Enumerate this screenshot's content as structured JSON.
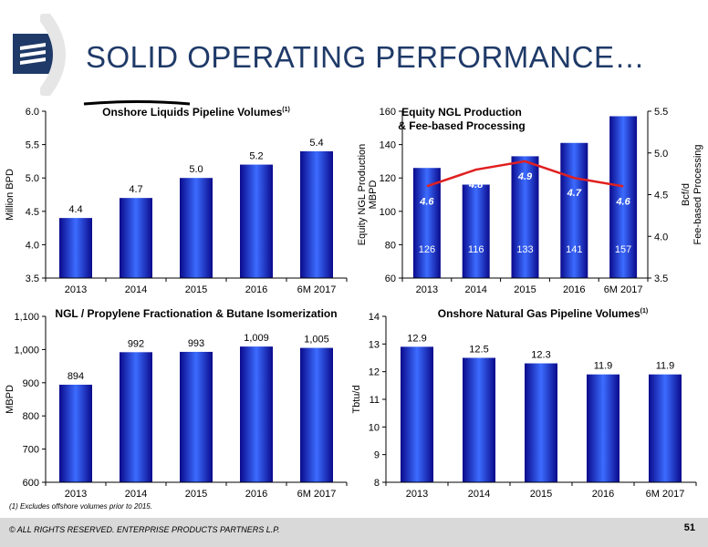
{
  "slide": {
    "title": "SOLID OPERATING PERFORMANCE…",
    "footnote": "(1) Excludes offshore volumes prior to 2015.",
    "copyright": "© ALL RIGHTS RESERVED. ENTERPRISE PRODUCTS PARTNERS L.P.",
    "page_number": "51"
  },
  "colors": {
    "bar_dark": "#0a0a8c",
    "bar_light": "#3c6cff",
    "line": "#e02020",
    "title": "#1f3a68"
  },
  "chart_data": [
    {
      "type": "bar",
      "title": "Onshore Liquids Pipeline Volumes",
      "title_sup": "(1)",
      "ylabel": "Million BPD",
      "categories": [
        "2013",
        "2014",
        "2015",
        "2016",
        "6M 2017"
      ],
      "values": [
        4.4,
        4.7,
        5.0,
        5.2,
        5.4
      ],
      "value_labels": [
        "4.4",
        "4.7",
        "5.0",
        "5.2",
        "5.4"
      ],
      "ylim": [
        3.5,
        6.0
      ],
      "yticks": [
        "3.5",
        "4.0",
        "4.5",
        "5.0",
        "5.5",
        "6.0"
      ],
      "grid": false
    },
    {
      "type": "bar",
      "title": "Equity NGL Production",
      "title_line2": "& Fee-based Processing",
      "ylabel": "Equity NGL Production",
      "ylabel_line2": "MBPD",
      "y2label": "Bcf/d",
      "y2label_line2": "Fee-based Processing",
      "categories": [
        "2013",
        "2014",
        "2015",
        "2016",
        "6M 2017"
      ],
      "series": [
        {
          "type": "bar",
          "values": [
            126,
            116,
            133,
            141,
            157
          ],
          "value_labels": [
            "126",
            "116",
            "133",
            "141",
            "157"
          ]
        },
        {
          "type": "line",
          "axis": "right",
          "values": [
            4.6,
            4.8,
            4.9,
            4.7,
            4.6
          ],
          "value_labels": [
            "4.6",
            "4.8",
            "4.9",
            "4.7",
            "4.6"
          ]
        }
      ],
      "ylim": [
        60,
        160
      ],
      "yticks": [
        "60",
        "80",
        "100",
        "120",
        "140",
        "160"
      ],
      "y2lim": [
        3.5,
        5.5
      ],
      "y2ticks": [
        "3.5",
        "4.0",
        "4.5",
        "5.0",
        "5.5"
      ],
      "grid": false
    },
    {
      "type": "bar",
      "title": "NGL / Propylene Fractionation & Butane Isomerization",
      "ylabel": "MBPD",
      "categories": [
        "2013",
        "2014",
        "2015",
        "2016",
        "6M 2017"
      ],
      "values": [
        894,
        992,
        993,
        1009,
        1005
      ],
      "value_labels": [
        "894",
        "992",
        "993",
        "1,009",
        "1,005"
      ],
      "ylim": [
        600,
        1100
      ],
      "yticks": [
        "600",
        "700",
        "800",
        "900",
        "1,000",
        "1,100"
      ],
      "grid": false
    },
    {
      "type": "bar",
      "title": "Onshore Natural Gas Pipeline Volumes",
      "title_sup": "(1)",
      "ylabel": "Tbtu/d",
      "categories": [
        "2013",
        "2014",
        "2015",
        "2016",
        "6M 2017"
      ],
      "values": [
        12.9,
        12.5,
        12.3,
        11.9,
        11.9
      ],
      "value_labels": [
        "12.9",
        "12.5",
        "12.3",
        "11.9",
        "11.9"
      ],
      "ylim": [
        8,
        14
      ],
      "yticks": [
        "8",
        "9",
        "10",
        "11",
        "12",
        "13",
        "14"
      ],
      "grid": false
    }
  ]
}
